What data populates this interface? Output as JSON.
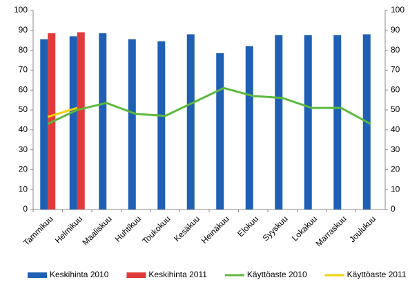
{
  "chart_data": {
    "type": "bar",
    "categories": [
      "Tammikuu",
      "Helmikuu",
      "Maaliskuu",
      "Huhtikuu",
      "Toukokuu",
      "Kesäkuu",
      "Heinäkuu",
      "Elokuu",
      "Syyskuu",
      "Lokakuu",
      "Marraskuu",
      "Joulukuu"
    ],
    "series": [
      {
        "name": "Keskihinta 2010",
        "type": "bar",
        "color": "#1f5fb4",
        "values": [
          85.5,
          87,
          88.5,
          85.5,
          84.5,
          88,
          78.5,
          82,
          87.5,
          87.5,
          87.5,
          88
        ]
      },
      {
        "name": "Keskihinta 2011",
        "type": "bar",
        "color": "#e03a3a",
        "values": [
          88.5,
          89,
          null,
          null,
          null,
          null,
          null,
          null,
          null,
          null,
          null,
          null
        ]
      },
      {
        "name": "Käyttöaste 2010",
        "type": "line",
        "axis": "y2",
        "color": "#5cb83c",
        "values": [
          43,
          50,
          53.5,
          48,
          47,
          54,
          61,
          57,
          56,
          51,
          51,
          43
        ]
      },
      {
        "name": "Käyttöaste 2011",
        "type": "line",
        "axis": "y2",
        "color": "#f5d000",
        "values": [
          46.5,
          51,
          null,
          null,
          null,
          null,
          null,
          null,
          null,
          null,
          null,
          null
        ]
      }
    ],
    "ylim": [
      0,
      100
    ],
    "yticks": [
      0,
      10,
      20,
      30,
      40,
      50,
      60,
      70,
      80,
      90,
      100
    ],
    "y2lim": [
      0,
      100
    ],
    "y2ticks": [
      0,
      10,
      20,
      30,
      40,
      50,
      60,
      70,
      80,
      90,
      100
    ],
    "grid": false,
    "legend": "bottom"
  }
}
